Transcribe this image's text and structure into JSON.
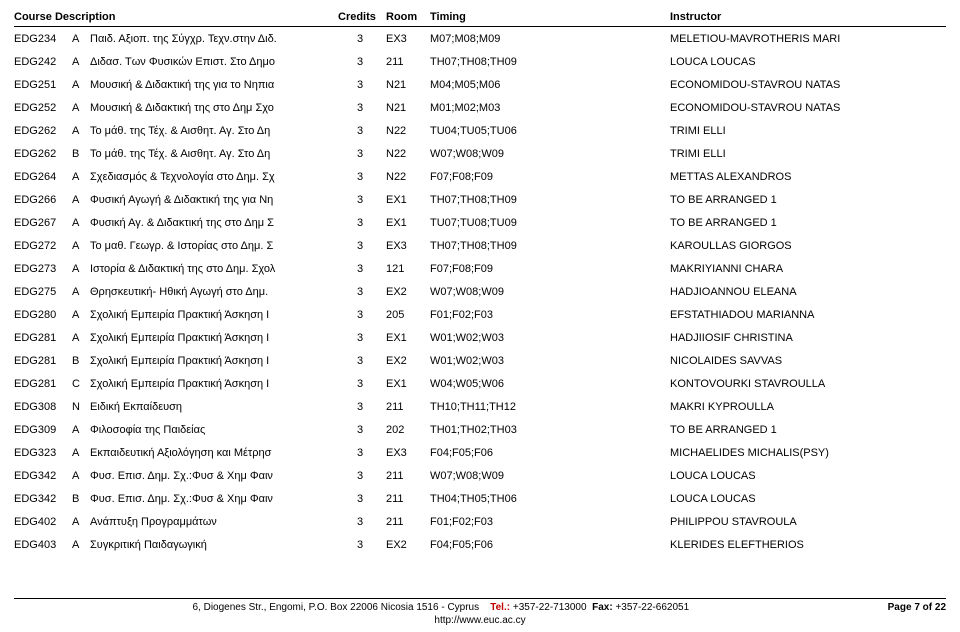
{
  "headers": {
    "course_desc": "Course Description",
    "credits": "Credits",
    "room": "Room",
    "timing": "Timing",
    "instructor": "Instructor"
  },
  "rows": [
    {
      "code": "EDG234",
      "sec": "A",
      "desc": "Παιδ. Αξιοπ. της Σύγχρ. Τεχν.στην Διδ.",
      "credits": "3",
      "room": "EX3",
      "timing": "M07;M08;M09",
      "instr": "MELETIOU-MAVROTHERIS MARI"
    },
    {
      "code": "EDG242",
      "sec": "A",
      "desc": "Διδασ. Των Φυσικών Επιστ. Στο Δημο",
      "credits": "3",
      "room": "211",
      "timing": "TH07;TH08;TH09",
      "instr": "LOUCA LOUCAS"
    },
    {
      "code": "EDG251",
      "sec": "A",
      "desc": "Μουσική & Διδακτική της για το Νηπια",
      "credits": "3",
      "room": "N21",
      "timing": "M04;M05;M06",
      "instr": "ECONOMIDOU-STAVROU NATAS"
    },
    {
      "code": "EDG252",
      "sec": "A",
      "desc": "Μουσική & Διδακτική της στο Δημ Σχο",
      "credits": "3",
      "room": "N21",
      "timing": "M01;M02;M03",
      "instr": "ECONOMIDOU-STAVROU NATAS"
    },
    {
      "code": "EDG262",
      "sec": "A",
      "desc": "Το μάθ. της Τέχ. & Αισθητ. Αγ. Στο Δη",
      "credits": "3",
      "room": "N22",
      "timing": "TU04;TU05;TU06",
      "instr": "TRIMI ELLI"
    },
    {
      "code": "EDG262",
      "sec": "B",
      "desc": "Το μάθ. της Τέχ. & Αισθητ. Αγ. Στο Δη",
      "credits": "3",
      "room": "N22",
      "timing": "W07;W08;W09",
      "instr": "TRIMI ELLI"
    },
    {
      "code": "EDG264",
      "sec": "A",
      "desc": "Σχεδιασμός & Τεχνολογία στο Δημ. Σχ",
      "credits": "3",
      "room": "N22",
      "timing": "F07;F08;F09",
      "instr": "METTAS ALEXANDROS"
    },
    {
      "code": "EDG266",
      "sec": "A",
      "desc": "Φυσική Αγωγή & Διδακτική της για Νη",
      "credits": "3",
      "room": "EX1",
      "timing": "TH07;TH08;TH09",
      "instr": "TO BE ARRANGED 1"
    },
    {
      "code": "EDG267",
      "sec": "A",
      "desc": "Φυσική Αγ. & Διδακτική της στο Δημ Σ",
      "credits": "3",
      "room": "EX1",
      "timing": "TU07;TU08;TU09",
      "instr": "TO BE ARRANGED 1"
    },
    {
      "code": "EDG272",
      "sec": "A",
      "desc": "Το μαθ. Γεωγρ. & Ιστορίας στο Δημ. Σ",
      "credits": "3",
      "room": "EX3",
      "timing": "TH07;TH08;TH09",
      "instr": "KAROULLAS GIORGOS"
    },
    {
      "code": "EDG273",
      "sec": "A",
      "desc": "Ιστορία & Διδακτική της στο Δημ. Σχολ",
      "credits": "3",
      "room": "121",
      "timing": "F07;F08;F09",
      "instr": "MAKRIYIANNI CHARA"
    },
    {
      "code": "EDG275",
      "sec": "A",
      "desc": "Θρησκευτική- Ηθική Αγωγή στο Δημ.",
      "credits": "3",
      "room": "EX2",
      "timing": "W07;W08;W09",
      "instr": "HADJIOANNOU ELEANA"
    },
    {
      "code": "EDG280",
      "sec": "A",
      "desc": "Σχολική Εμπειρία Πρακτική Άσκηση Ι",
      "credits": "3",
      "room": "205",
      "timing": "F01;F02;F03",
      "instr": "EFSTATHIADOU MARIANNA"
    },
    {
      "code": "EDG281",
      "sec": "A",
      "desc": "Σχολική Εμπειρία Πρακτική Άσκηση Ι",
      "credits": "3",
      "room": "EX1",
      "timing": "W01;W02;W03",
      "instr": "HADJIIOSIF CHRISTINA"
    },
    {
      "code": "EDG281",
      "sec": "B",
      "desc": "Σχολική Εμπειρία Πρακτική Άσκηση Ι",
      "credits": "3",
      "room": "EX2",
      "timing": "W01;W02;W03",
      "instr": "NICOLAIDES SAVVAS"
    },
    {
      "code": "EDG281",
      "sec": "C",
      "desc": "Σχολική Εμπειρία Πρακτική Άσκηση Ι",
      "credits": "3",
      "room": "EX1",
      "timing": "W04;W05;W06",
      "instr": "KONTOVOURKI STAVROULLA"
    },
    {
      "code": "EDG308",
      "sec": "N",
      "desc": "Ειδική Εκπαίδευση",
      "credits": "3",
      "room": "211",
      "timing": "TH10;TH11;TH12",
      "instr": "MAKRI KYPROULLA"
    },
    {
      "code": "EDG309",
      "sec": "A",
      "desc": "Φιλοσοφία της Παιδείας",
      "credits": "3",
      "room": "202",
      "timing": "TH01;TH02;TH03",
      "instr": "TO BE ARRANGED 1"
    },
    {
      "code": "EDG323",
      "sec": "A",
      "desc": "Εκπαιδευτική Αξιολόγηση και Μέτρησ",
      "credits": "3",
      "room": "EX3",
      "timing": "F04;F05;F06",
      "instr": "MICHAELIDES MICHALIS(PSY)"
    },
    {
      "code": "EDG342",
      "sec": "A",
      "desc": "Φυσ. Επισ. Δημ. Σχ.:Φυσ & Χημ Φαιν",
      "credits": "3",
      "room": "211",
      "timing": "W07;W08;W09",
      "instr": "LOUCA LOUCAS"
    },
    {
      "code": "EDG342",
      "sec": "B",
      "desc": "Φυσ. Επισ. Δημ. Σχ.:Φυσ & Χημ Φαιν",
      "credits": "3",
      "room": "211",
      "timing": "TH04;TH05;TH06",
      "instr": "LOUCA LOUCAS"
    },
    {
      "code": "EDG402",
      "sec": "A",
      "desc": "Ανάπτυξη Προγραμμάτων",
      "credits": "3",
      "room": "211",
      "timing": "F01;F02;F03",
      "instr": "PHILIPPOU STAVROULA"
    },
    {
      "code": "EDG403",
      "sec": "A",
      "desc": "Συγκριτική Παιδαγωγική",
      "credits": "3",
      "room": "EX2",
      "timing": "F04;F05;F06",
      "instr": "KLERIDES ELEFTHERIOS"
    }
  ],
  "footer": {
    "address": "6, Diogenes Str., Engomi, P.O. Box 22006 Nicosia 1516 - Cyprus",
    "tel_label": "Tel.:",
    "tel": "+357-22-713000",
    "fax_label": "Fax:",
    "fax": "+357-22-662051",
    "page": "Page 7 of 22",
    "url": "http://www.euc.ac.cy"
  }
}
